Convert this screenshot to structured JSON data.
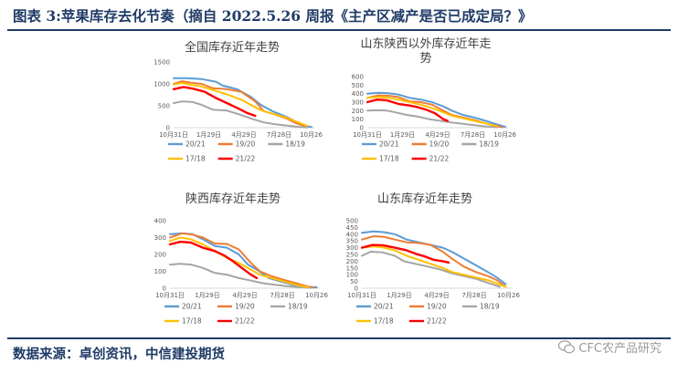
{
  "header": {
    "title": "图表 3:苹果库存去化节奏（摘自 2022.5.26 周报《主产区减产是否已成定局？》"
  },
  "footer": {
    "source": "数据来源：卓创资讯，中信建投期货",
    "watermark": "CFC农产品研究"
  },
  "legend_names": [
    "20/21",
    "19/20",
    "18/19",
    "17/18",
    "21/22"
  ],
  "colors": {
    "20/21": "#5b9bd5",
    "19/20": "#ed7d31",
    "18/19": "#a5a5a5",
    "17/18": "#ffc000",
    "21/22": "#ff0000"
  },
  "x_ticks": [
    "10月31日",
    "1月29日",
    "4月29日",
    "7月28日",
    "10月26日"
  ],
  "chart_data": [
    {
      "type": "line",
      "title": "全国库存近年走势",
      "x": [
        "10月31日",
        "1月29日",
        "4月29日",
        "7月28日",
        "10月26日"
      ],
      "ylim": [
        0,
        1500
      ],
      "yticks": [
        0,
        500,
        1000,
        1500
      ],
      "series": [
        {
          "name": "20/21",
          "points": [
            [
              0,
              1130
            ],
            [
              10,
              1130
            ],
            [
              20,
              1110
            ],
            [
              30,
              1050
            ],
            [
              35,
              960
            ],
            [
              45,
              880
            ],
            [
              55,
              700
            ],
            [
              62,
              520
            ],
            [
              70,
              380
            ],
            [
              80,
              250
            ],
            [
              88,
              120
            ],
            [
              93,
              50
            ],
            [
              98,
              15
            ]
          ]
        },
        {
          "name": "19/20",
          "points": [
            [
              0,
              1000
            ],
            [
              6,
              1060
            ],
            [
              12,
              1030
            ],
            [
              20,
              1000
            ],
            [
              28,
              900
            ],
            [
              38,
              880
            ],
            [
              48,
              820
            ],
            [
              58,
              600
            ],
            [
              64,
              380
            ],
            [
              72,
              300
            ],
            [
              80,
              210
            ],
            [
              88,
              90
            ],
            [
              95,
              20
            ]
          ]
        },
        {
          "name": "18/19",
          "points": [
            [
              0,
              560
            ],
            [
              6,
              600
            ],
            [
              13,
              590
            ],
            [
              20,
              520
            ],
            [
              28,
              410
            ],
            [
              38,
              390
            ],
            [
              46,
              310
            ],
            [
              56,
              200
            ],
            [
              64,
              120
            ],
            [
              72,
              80
            ],
            [
              80,
              50
            ],
            [
              88,
              20
            ],
            [
              95,
              5
            ]
          ]
        },
        {
          "name": "17/18",
          "points": [
            [
              0,
              990
            ],
            [
              6,
              1020
            ],
            [
              12,
              980
            ],
            [
              20,
              940
            ],
            [
              28,
              860
            ],
            [
              38,
              760
            ],
            [
              48,
              640
            ],
            [
              56,
              500
            ],
            [
              62,
              400
            ],
            [
              70,
              320
            ],
            [
              80,
              230
            ],
            [
              88,
              130
            ],
            [
              95,
              40
            ]
          ]
        },
        {
          "name": "21/22",
          "points": [
            [
              0,
              880
            ],
            [
              7,
              930
            ],
            [
              14,
              890
            ],
            [
              22,
              820
            ],
            [
              30,
              680
            ],
            [
              38,
              560
            ],
            [
              46,
              440
            ],
            [
              52,
              340
            ],
            [
              58,
              270
            ]
          ]
        }
      ]
    },
    {
      "type": "line",
      "title": "山东陕西以外库存近年走势",
      "x": [
        "10月31日",
        "1月29日",
        "4月29日",
        "7月28日",
        "10月26日"
      ],
      "ylim": [
        0,
        600
      ],
      "yticks": [
        0,
        100,
        200,
        300,
        400,
        500,
        600
      ],
      "series": [
        {
          "name": "20/21",
          "points": [
            [
              0,
              400
            ],
            [
              8,
              410
            ],
            [
              15,
              405
            ],
            [
              22,
              390
            ],
            [
              30,
              350
            ],
            [
              38,
              330
            ],
            [
              46,
              300
            ],
            [
              54,
              250
            ],
            [
              60,
              200
            ],
            [
              68,
              150
            ],
            [
              76,
              120
            ],
            [
              84,
              80
            ],
            [
              92,
              40
            ],
            [
              98,
              10
            ]
          ]
        },
        {
          "name": "19/20",
          "points": [
            [
              0,
              350
            ],
            [
              8,
              380
            ],
            [
              15,
              375
            ],
            [
              22,
              360
            ],
            [
              30,
              310
            ],
            [
              38,
              300
            ],
            [
              46,
              270
            ],
            [
              54,
              200
            ],
            [
              60,
              150
            ],
            [
              68,
              120
            ],
            [
              76,
              90
            ],
            [
              84,
              50
            ],
            [
              92,
              20
            ],
            [
              96,
              5
            ]
          ]
        },
        {
          "name": "18/19",
          "points": [
            [
              0,
              200
            ],
            [
              8,
              205
            ],
            [
              14,
              200
            ],
            [
              20,
              180
            ],
            [
              28,
              150
            ],
            [
              36,
              130
            ],
            [
              44,
              100
            ],
            [
              52,
              80
            ],
            [
              60,
              60
            ],
            [
              68,
              45
            ],
            [
              76,
              30
            ],
            [
              84,
              15
            ],
            [
              92,
              5
            ]
          ]
        },
        {
          "name": "17/18",
          "points": [
            [
              0,
              350
            ],
            [
              8,
              360
            ],
            [
              15,
              350
            ],
            [
              22,
              330
            ],
            [
              30,
              300
            ],
            [
              38,
              270
            ],
            [
              46,
              230
            ],
            [
              54,
              180
            ],
            [
              60,
              140
            ],
            [
              68,
              110
            ],
            [
              76,
              80
            ],
            [
              84,
              50
            ],
            [
              92,
              20
            ]
          ]
        },
        {
          "name": "21/22",
          "points": [
            [
              0,
              300
            ],
            [
              7,
              330
            ],
            [
              14,
              320
            ],
            [
              22,
              280
            ],
            [
              30,
              260
            ],
            [
              36,
              240
            ],
            [
              42,
              210
            ],
            [
              48,
              170
            ],
            [
              54,
              100
            ],
            [
              57,
              80
            ]
          ]
        }
      ]
    },
    {
      "type": "line",
      "title": "陕西库存近年走势",
      "x": [
        "10月31日",
        "1月29日",
        "4月29日",
        "7月28日",
        "10月26日"
      ],
      "ylim": [
        0,
        400
      ],
      "yticks": [
        0,
        100,
        200,
        300,
        400
      ],
      "series": [
        {
          "name": "20/21",
          "points": [
            [
              0,
              320
            ],
            [
              8,
              325
            ],
            [
              15,
              320
            ],
            [
              22,
              290
            ],
            [
              30,
              250
            ],
            [
              38,
              240
            ],
            [
              46,
              200
            ],
            [
              52,
              140
            ],
            [
              58,
              110
            ],
            [
              66,
              60
            ],
            [
              74,
              40
            ],
            [
              82,
              20
            ],
            [
              90,
              10
            ],
            [
              98,
              5
            ]
          ]
        },
        {
          "name": "19/20",
          "points": [
            [
              0,
              300
            ],
            [
              8,
              325
            ],
            [
              15,
              318
            ],
            [
              22,
              300
            ],
            [
              30,
              265
            ],
            [
              38,
              262
            ],
            [
              46,
              230
            ],
            [
              54,
              150
            ],
            [
              60,
              100
            ],
            [
              68,
              70
            ],
            [
              76,
              50
            ],
            [
              84,
              30
            ],
            [
              92,
              10
            ],
            [
              96,
              3
            ]
          ]
        },
        {
          "name": "18/19",
          "points": [
            [
              0,
              140
            ],
            [
              7,
              145
            ],
            [
              14,
              140
            ],
            [
              22,
              120
            ],
            [
              30,
              90
            ],
            [
              38,
              80
            ],
            [
              46,
              60
            ],
            [
              54,
              45
            ],
            [
              62,
              30
            ],
            [
              70,
              20
            ],
            [
              78,
              12
            ],
            [
              86,
              6
            ],
            [
              94,
              2
            ]
          ]
        },
        {
          "name": "17/18",
          "points": [
            [
              0,
              280
            ],
            [
              7,
              300
            ],
            [
              14,
              290
            ],
            [
              22,
              260
            ],
            [
              30,
              220
            ],
            [
              38,
              180
            ],
            [
              46,
              150
            ],
            [
              54,
              110
            ],
            [
              60,
              80
            ],
            [
              68,
              60
            ],
            [
              76,
              40
            ],
            [
              84,
              20
            ],
            [
              92,
              5
            ]
          ]
        },
        {
          "name": "21/22",
          "points": [
            [
              0,
              260
            ],
            [
              7,
              275
            ],
            [
              14,
              270
            ],
            [
              22,
              240
            ],
            [
              30,
              220
            ],
            [
              36,
              195
            ],
            [
              42,
              160
            ],
            [
              48,
              120
            ],
            [
              54,
              80
            ],
            [
              58,
              60
            ]
          ]
        }
      ]
    },
    {
      "type": "line",
      "title": "山东库存近年走势",
      "x": [
        "10月31日",
        "1月29日",
        "4月29日",
        "7月28日",
        "10月26日"
      ],
      "ylim": [
        0,
        500
      ],
      "yticks": [
        0,
        50,
        100,
        150,
        200,
        250,
        300,
        350,
        400,
        450,
        500
      ],
      "series": [
        {
          "name": "20/21",
          "points": [
            [
              0,
              410
            ],
            [
              8,
              420
            ],
            [
              15,
              415
            ],
            [
              22,
              400
            ],
            [
              30,
              360
            ],
            [
              38,
              340
            ],
            [
              46,
              320
            ],
            [
              54,
              300
            ],
            [
              60,
              270
            ],
            [
              68,
              220
            ],
            [
              76,
              170
            ],
            [
              84,
              120
            ],
            [
              90,
              80
            ],
            [
              96,
              30
            ]
          ]
        },
        {
          "name": "19/20",
          "points": [
            [
              0,
              360
            ],
            [
              8,
              385
            ],
            [
              15,
              380
            ],
            [
              22,
              360
            ],
            [
              30,
              340
            ],
            [
              38,
              335
            ],
            [
              46,
              320
            ],
            [
              54,
              270
            ],
            [
              60,
              220
            ],
            [
              68,
              160
            ],
            [
              76,
              120
            ],
            [
              84,
              90
            ],
            [
              90,
              60
            ],
            [
              95,
              20
            ]
          ]
        },
        {
          "name": "18/19",
          "points": [
            [
              0,
              240
            ],
            [
              6,
              270
            ],
            [
              14,
              265
            ],
            [
              22,
              240
            ],
            [
              28,
              200
            ],
            [
              36,
              180
            ],
            [
              44,
              160
            ],
            [
              52,
              140
            ],
            [
              60,
              110
            ],
            [
              68,
              90
            ],
            [
              76,
              70
            ],
            [
              84,
              40
            ],
            [
              92,
              10
            ]
          ]
        },
        {
          "name": "17/18",
          "points": [
            [
              0,
              300
            ],
            [
              8,
              310
            ],
            [
              15,
              300
            ],
            [
              22,
              280
            ],
            [
              30,
              240
            ],
            [
              38,
              210
            ],
            [
              46,
              180
            ],
            [
              54,
              150
            ],
            [
              60,
              120
            ],
            [
              68,
              100
            ],
            [
              76,
              80
            ],
            [
              84,
              60
            ],
            [
              90,
              35
            ],
            [
              96,
              10
            ]
          ]
        },
        {
          "name": "21/22",
          "points": [
            [
              0,
              300
            ],
            [
              7,
              320
            ],
            [
              14,
              318
            ],
            [
              22,
              300
            ],
            [
              30,
              280
            ],
            [
              36,
              255
            ],
            [
              42,
              235
            ],
            [
              48,
              210
            ],
            [
              54,
              200
            ],
            [
              58,
              190
            ]
          ]
        }
      ]
    }
  ]
}
